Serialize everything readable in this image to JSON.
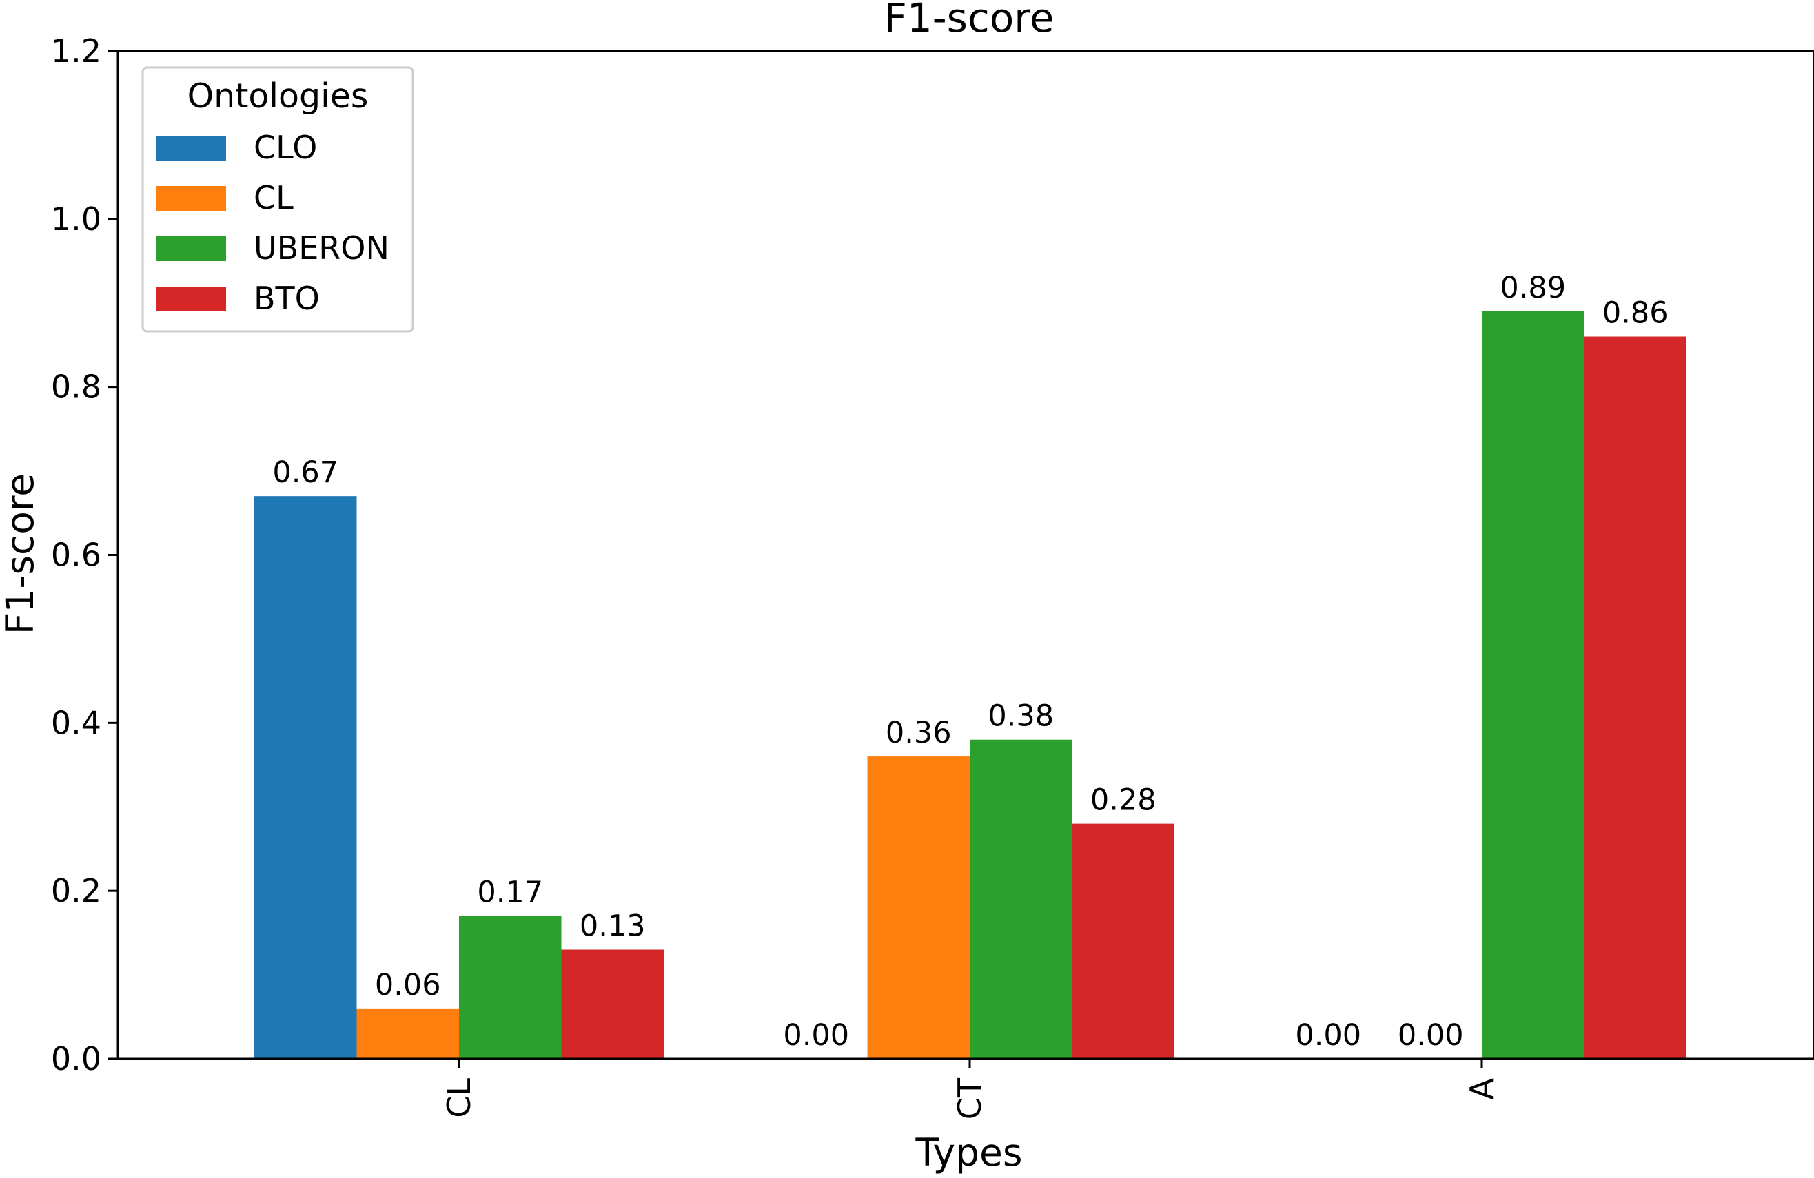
{
  "chart_data": {
    "type": "bar",
    "title": "F1-score",
    "xlabel": "Types",
    "ylabel": "F1-score",
    "ylim": [
      0,
      1.2
    ],
    "yticks": [
      "0.0",
      "0.2",
      "0.4",
      "0.6",
      "0.8",
      "1.0",
      "1.2"
    ],
    "categories": [
      "CL",
      "CT",
      "A"
    ],
    "series": [
      {
        "name": "CLO",
        "color": "#1f77b4",
        "values": [
          0.67,
          0.0,
          0.0
        ],
        "labels": [
          "0.67",
          "0.00",
          "0.00"
        ]
      },
      {
        "name": "CL",
        "color": "#ff7f0e",
        "values": [
          0.06,
          0.36,
          0.0
        ],
        "labels": [
          "0.06",
          "0.36",
          "0.00"
        ]
      },
      {
        "name": "UBERON",
        "color": "#2ca02c",
        "values": [
          0.17,
          0.38,
          0.89
        ],
        "labels": [
          "0.17",
          "0.38",
          "0.89"
        ]
      },
      {
        "name": "BTO",
        "color": "#d62728",
        "values": [
          0.13,
          0.28,
          0.86
        ],
        "labels": [
          "0.13",
          "0.28",
          "0.86"
        ]
      }
    ],
    "legend": {
      "title": "Ontologies",
      "placement": "top-left"
    },
    "grid": false
  }
}
